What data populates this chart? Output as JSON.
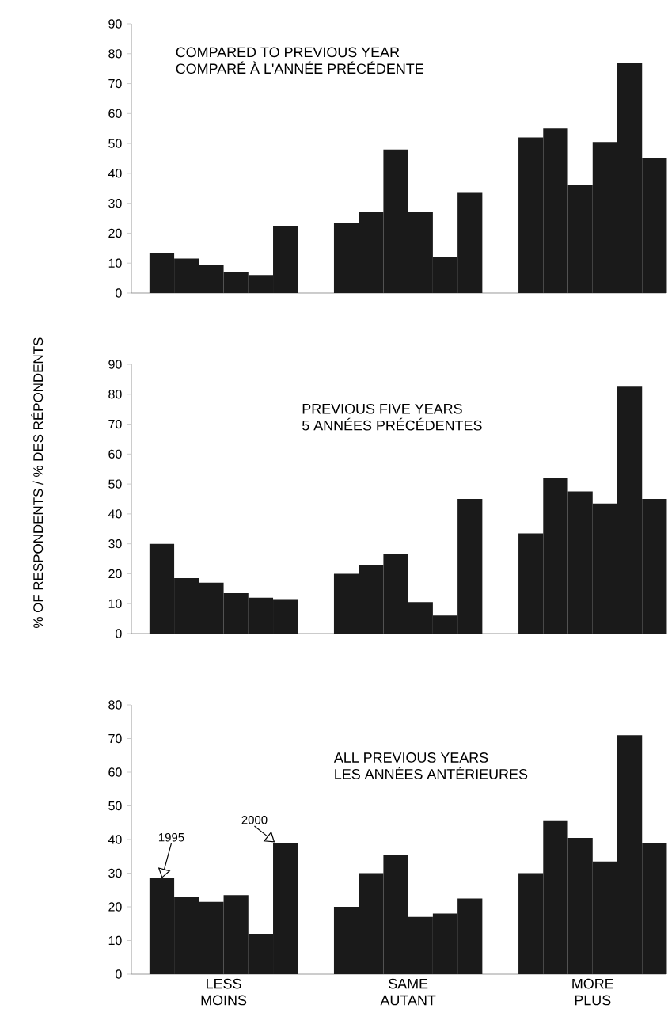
{
  "chart_data": [
    {
      "type": "bar",
      "title": "COMPARED TO PREVIOUS YEAR",
      "subtitle": "COMPARÉ À L'ANNÉE PRÉCÉDENTE",
      "categories": [
        null,
        null,
        null
      ],
      "series": [
        {
          "color": "#1a1a1a",
          "values": [
            13.5,
            23.5,
            52
          ]
        },
        {
          "color": "#1a1a1a",
          "values": [
            11.5,
            27,
            55
          ]
        },
        {
          "color": "#1a1a1a",
          "values": [
            9.5,
            48,
            36
          ]
        },
        {
          "color": "#1a1a1a",
          "values": [
            7,
            27,
            50.5
          ]
        },
        {
          "color": "#1a1a1a",
          "values": [
            6,
            12,
            77
          ]
        },
        {
          "color": "#1a1a1a",
          "values": [
            22.5,
            33.5,
            45
          ]
        }
      ],
      "ylim": [
        0,
        90
      ],
      "yticks": [
        0,
        10,
        20,
        30,
        40,
        50,
        60,
        70,
        80,
        90
      ],
      "tick_labels": "y"
    },
    {
      "type": "bar",
      "title": "PREVIOUS FIVE YEARS",
      "subtitle": "5 ANNÉES PRÉCÉDENTES",
      "ylabel": "% OF RESPONDENTS / % DES RÉPONDENTS",
      "categories": [
        null,
        null,
        null
      ],
      "series": [
        {
          "color": "#1a1a1a",
          "values": [
            30,
            20,
            33.5
          ]
        },
        {
          "color": "#1a1a1a",
          "values": [
            18.5,
            23,
            52
          ]
        },
        {
          "color": "#1a1a1a",
          "values": [
            17,
            26.5,
            47.5
          ]
        },
        {
          "color": "#1a1a1a",
          "values": [
            13.5,
            10.5,
            43.5
          ]
        },
        {
          "color": "#1a1a1a",
          "values": [
            12,
            6,
            82.5
          ]
        },
        {
          "color": "#1a1a1a",
          "values": [
            11.5,
            45,
            45
          ]
        }
      ],
      "ylim": [
        0,
        90
      ],
      "yticks": [
        0,
        10,
        20,
        30,
        40,
        50,
        60,
        70,
        80,
        90
      ],
      "tick_labels": "y"
    },
    {
      "type": "bar",
      "title": "ALL PREVIOUS YEARS",
      "subtitle": "LES ANNÉES ANTÉRIEURES",
      "categories": [
        "LESS MOINS",
        "SAME AUTANT",
        "MORE PLUS"
      ],
      "series": [
        {
          "color": "#1a1a1a",
          "values": [
            28.5,
            20,
            30
          ]
        },
        {
          "color": "#1a1a1a",
          "values": [
            23,
            30,
            45.5
          ]
        },
        {
          "color": "#1a1a1a",
          "values": [
            21.5,
            35.5,
            40.5
          ]
        },
        {
          "color": "#1a1a1a",
          "values": [
            23.5,
            17,
            33.5
          ]
        },
        {
          "color": "#1a1a1a",
          "values": [
            12,
            18,
            71
          ]
        },
        {
          "color": "#1a1a1a",
          "values": [
            39,
            22.5,
            39
          ]
        }
      ],
      "ylim": [
        0,
        80
      ],
      "yticks": [
        0,
        10,
        20,
        30,
        40,
        50,
        60,
        70,
        80
      ],
      "annotations": [
        {
          "text": "1995",
          "y": 28.5
        },
        "2000"
      ]
    }
  ]
}
